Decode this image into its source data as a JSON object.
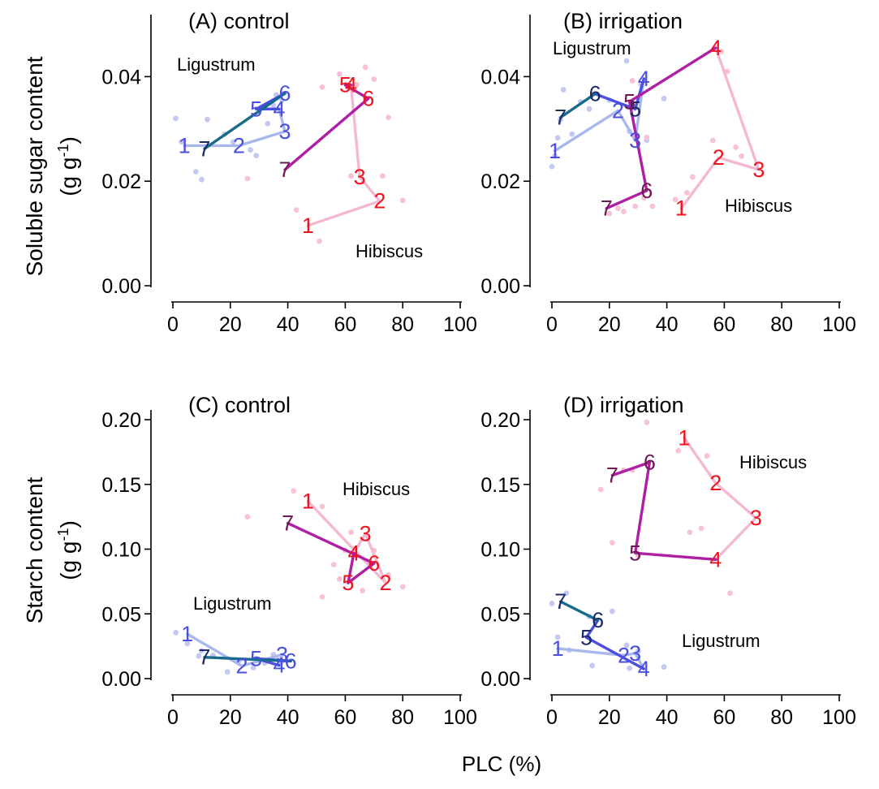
{
  "figure": {
    "x_axis_label": "PLC (%)",
    "y_axis_labels": [
      {
        "line1": "Soluble sugar content",
        "unit_prefix": "(g g",
        "unit_sup": "-1",
        "unit_suffix": ")"
      },
      {
        "line1": "Starch content",
        "unit_prefix": "(g g",
        "unit_sup": "-1",
        "unit_suffix": ")"
      }
    ]
  },
  "colors": {
    "ligustrum_light": "#a9b8ec",
    "ligustrum_mid": "#4a4fe0",
    "ligustrum_dark_teal": "#166b8a",
    "ligustrum_navy": "#1c2a66",
    "ligustrum_scatter": "#c3c9f2",
    "hibiscus_light": "#f4b8d3",
    "hibiscus_red": "#f0141e",
    "hibiscus_magenta": "#b01ea6",
    "hibiscus_plum": "#6e1a55",
    "hibiscus_scatter": "#f7c2d6"
  },
  "chart_data": [
    {
      "type": "line",
      "panel": "A",
      "title": "(A) control",
      "ylabel": "Soluble sugar content (g g-1)",
      "xlabel": "PLC (%)",
      "xlim": [
        0,
        100
      ],
      "ylim": [
        0,
        0.05
      ],
      "x_ticks": [
        "0",
        "20",
        "40",
        "60",
        "80",
        "100"
      ],
      "y_ticks": [
        "0.00",
        "0.02",
        "0.04"
      ],
      "annotations": [
        "Ligustrum",
        "Hibiscus"
      ],
      "series": [
        {
          "species": "Ligustrum",
          "labels": [
            "1",
            "2",
            "3",
            "4",
            "5",
            "6",
            "7"
          ],
          "x": [
            4,
            23,
            39,
            37,
            29,
            39,
            11
          ],
          "y": [
            0.0268,
            0.0268,
            0.0295,
            0.0338,
            0.0338,
            0.0368,
            0.0262
          ]
        },
        {
          "species": "Hibiscus",
          "labels": [
            "1",
            "2",
            "3",
            "4",
            "5",
            "6",
            "7"
          ],
          "x": [
            47,
            72,
            65,
            62,
            60,
            68,
            39
          ],
          "y": [
            0.0115,
            0.0162,
            0.0208,
            0.0384,
            0.0384,
            0.0358,
            0.0222
          ]
        }
      ],
      "scatter": {
        "Ligustrum": [
          [
            1,
            0.032
          ],
          [
            3,
            0.0275
          ],
          [
            8,
            0.0218
          ],
          [
            10,
            0.0203
          ],
          [
            12,
            0.0318
          ],
          [
            18,
            0.029
          ],
          [
            21,
            0.0275
          ],
          [
            27,
            0.026
          ],
          [
            29,
            0.0249
          ],
          [
            33,
            0.031
          ],
          [
            35,
            0.0345
          ],
          [
            36,
            0.0365
          ],
          [
            38,
            0.0355
          ]
        ],
        "Hibiscus": [
          [
            26,
            0.0205
          ],
          [
            43,
            0.0145
          ],
          [
            51,
            0.0085
          ],
          [
            52,
            0.038
          ],
          [
            58,
            0.0405
          ],
          [
            62,
            0.021
          ],
          [
            64,
            0.0385
          ],
          [
            67,
            0.0418
          ],
          [
            70,
            0.0395
          ],
          [
            73,
            0.021
          ],
          [
            75,
            0.0322
          ],
          [
            80,
            0.0163
          ]
        ]
      }
    },
    {
      "type": "line",
      "panel": "B",
      "title": "(B) irrigation",
      "ylabel": "Soluble sugar content (g g-1)",
      "xlabel": "PLC (%)",
      "xlim": [
        0,
        100
      ],
      "ylim": [
        0,
        0.05
      ],
      "x_ticks": [
        "0",
        "20",
        "40",
        "60",
        "80",
        "100"
      ],
      "y_ticks": [
        "0.00",
        "0.02",
        "0.04"
      ],
      "annotations": [
        "Ligustrum",
        "Hibiscus"
      ],
      "series": [
        {
          "species": "Ligustrum",
          "labels": [
            "1",
            "2",
            "3",
            "4",
            "5",
            "6",
            "7"
          ],
          "x": [
            1,
            23,
            29,
            32,
            29,
            15,
            3
          ],
          "y": [
            0.0258,
            0.0335,
            0.0278,
            0.0396,
            0.0338,
            0.0367,
            0.0322
          ]
        },
        {
          "species": "Hibiscus",
          "labels": [
            "1",
            "2",
            "3",
            "4",
            "5",
            "6",
            "7"
          ],
          "x": [
            45,
            58,
            72,
            57,
            27,
            33,
            19
          ],
          "y": [
            0.0148,
            0.0245,
            0.0222,
            0.0455,
            0.0352,
            0.0182,
            0.0148
          ]
        }
      ],
      "scatter": {
        "Ligustrum": [
          [
            0,
            0.0228
          ],
          [
            1,
            0.0248
          ],
          [
            2,
            0.0283
          ],
          [
            3,
            0.0318
          ],
          [
            4,
            0.0375
          ],
          [
            7,
            0.029
          ],
          [
            10,
            0.0352
          ],
          [
            13,
            0.0338
          ],
          [
            20,
            0.0355
          ],
          [
            26,
            0.043
          ],
          [
            27,
            0.0295
          ],
          [
            31,
            0.0385
          ],
          [
            33,
            0.0278
          ],
          [
            39,
            0.0358
          ]
        ],
        "Hibiscus": [
          [
            20,
            0.0138
          ],
          [
            23,
            0.0148
          ],
          [
            25,
            0.0142
          ],
          [
            28,
            0.0392
          ],
          [
            29,
            0.0152
          ],
          [
            32,
            0.0168
          ],
          [
            33,
            0.0284
          ],
          [
            35,
            0.0152
          ],
          [
            43,
            0.0165
          ],
          [
            47,
            0.0178
          ],
          [
            49,
            0.0208
          ],
          [
            56,
            0.0278
          ],
          [
            59,
            0.0448
          ],
          [
            61,
            0.041
          ],
          [
            64,
            0.0265
          ],
          [
            66,
            0.0248
          ]
        ]
      }
    },
    {
      "type": "line",
      "panel": "C",
      "title": "(C) control",
      "ylabel": "Starch content (g g-1)",
      "xlabel": "PLC (%)",
      "xlim": [
        0,
        100
      ],
      "ylim": [
        0,
        0.2
      ],
      "x_ticks": [
        "0",
        "20",
        "40",
        "60",
        "80",
        "100"
      ],
      "y_ticks": [
        "0.00",
        "0.05",
        "0.10",
        "0.15",
        "0.20"
      ],
      "annotations": [
        "Hibiscus",
        "Ligustrum"
      ],
      "series": [
        {
          "species": "Ligustrum",
          "labels": [
            "1",
            "2",
            "3",
            "4",
            "5",
            "6",
            "7"
          ],
          "x": [
            5,
            24,
            38,
            37,
            29,
            41,
            11
          ],
          "y": [
            0.0345,
            0.0098,
            0.0185,
            0.0102,
            0.0155,
            0.0135,
            0.0165
          ]
        },
        {
          "species": "Hibiscus",
          "labels": [
            "1",
            "2",
            "3",
            "4",
            "5",
            "6",
            "7"
          ],
          "x": [
            47,
            74,
            67,
            63,
            61,
            70,
            40
          ],
          "y": [
            0.137,
            0.074,
            0.112,
            0.097,
            0.074,
            0.089,
            0.12
          ]
        }
      ],
      "scatter": {
        "Ligustrum": [
          [
            1,
            0.0355
          ],
          [
            5,
            0.027
          ],
          [
            9,
            0.0175
          ],
          [
            10,
            0.0215
          ],
          [
            14,
            0.018
          ],
          [
            19,
            0.0052
          ],
          [
            23,
            0.014
          ],
          [
            28,
            0.0085
          ],
          [
            32,
            0.0122
          ],
          [
            35,
            0.0185
          ],
          [
            38,
            0.0135
          ]
        ],
        "Hibiscus": [
          [
            26,
            0.125
          ],
          [
            42,
            0.145
          ],
          [
            52,
            0.133
          ],
          [
            52,
            0.063
          ],
          [
            56,
            0.088
          ],
          [
            58,
            0.077
          ],
          [
            60,
            0.099
          ],
          [
            62,
            0.113
          ],
          [
            66,
            0.068
          ],
          [
            70,
            0.099
          ],
          [
            75,
            0.08
          ],
          [
            80,
            0.071
          ]
        ]
      }
    },
    {
      "type": "line",
      "panel": "D",
      "title": "(D) irrigation",
      "ylabel": "Starch content (g g-1)",
      "xlabel": "PLC (%)",
      "xlim": [
        0,
        100
      ],
      "ylim": [
        0,
        0.2
      ],
      "x_ticks": [
        "0",
        "20",
        "40",
        "60",
        "80",
        "100"
      ],
      "y_ticks": [
        "0.00",
        "0.05",
        "0.10",
        "0.15",
        "0.20"
      ],
      "annotations": [
        "Hibiscus",
        "Ligustrum"
      ],
      "series": [
        {
          "species": "Ligustrum",
          "labels": [
            "1",
            "2",
            "3",
            "4",
            "5",
            "6",
            "7"
          ],
          "x": [
            2,
            25,
            29,
            32,
            12,
            16,
            3
          ],
          "y": [
            0.0232,
            0.018,
            0.0195,
            0.0075,
            0.0318,
            0.045,
            0.0595
          ]
        },
        {
          "species": "Hibiscus",
          "labels": [
            "1",
            "2",
            "3",
            "4",
            "5",
            "6",
            "7"
          ],
          "x": [
            46,
            57,
            71,
            57,
            29,
            34,
            21
          ],
          "y": [
            0.186,
            0.151,
            0.124,
            0.092,
            0.097,
            0.167,
            0.157
          ]
        }
      ],
      "scatter": {
        "Ligustrum": [
          [
            0,
            0.058
          ],
          [
            2,
            0.032
          ],
          [
            5,
            0.066
          ],
          [
            6,
            0.022
          ],
          [
            13,
            0.048
          ],
          [
            14,
            0.01
          ],
          [
            21,
            0.052
          ],
          [
            26,
            0.0258
          ],
          [
            27,
            0.008
          ],
          [
            30,
            0.021
          ],
          [
            39,
            0.009
          ]
        ],
        "Hibiscus": [
          [
            17,
            0.146
          ],
          [
            21,
            0.105
          ],
          [
            25,
            0.161
          ],
          [
            28,
            0.161
          ],
          [
            30,
            0.095
          ],
          [
            33,
            0.198
          ],
          [
            44,
            0.176
          ],
          [
            48,
            0.113
          ],
          [
            52,
            0.116
          ],
          [
            54,
            0.172
          ],
          [
            62,
            0.066
          ]
        ]
      }
    }
  ]
}
